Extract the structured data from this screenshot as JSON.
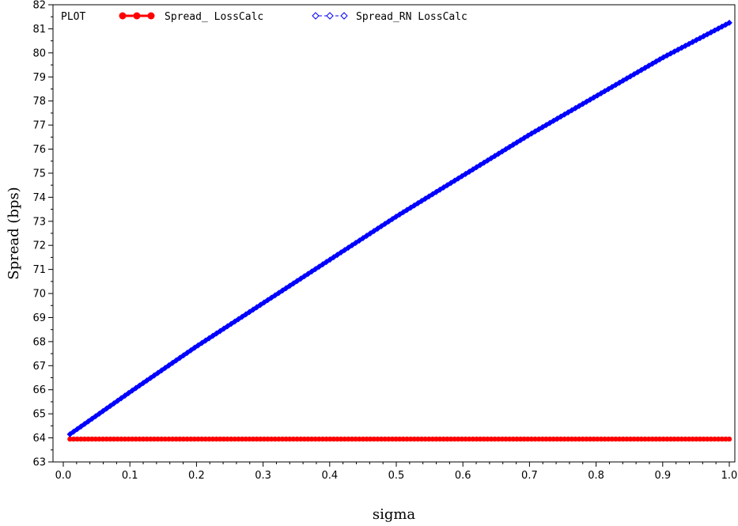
{
  "chart_data": {
    "type": "line",
    "legend_title": "PLOT",
    "xlabel": "sigma",
    "ylabel": "Spread (bps)",
    "xlim": [
      0,
      1.0
    ],
    "ylim": [
      63,
      82
    ],
    "x_ticks": [
      "0.0",
      "0.1",
      "0.2",
      "0.3",
      "0.4",
      "0.5",
      "0.6",
      "0.7",
      "0.8",
      "0.9",
      "1.0"
    ],
    "y_ticks": [
      "63",
      "64",
      "65",
      "66",
      "67",
      "68",
      "69",
      "70",
      "71",
      "72",
      "73",
      "74",
      "75",
      "76",
      "77",
      "78",
      "79",
      "80",
      "81",
      "82"
    ],
    "grid": false,
    "legend_position": "top",
    "series": [
      {
        "name": "Spread_ LossCalc",
        "color": "#ff0000",
        "marker": "filled-circle",
        "x": [
          0.01,
          0.1,
          0.2,
          0.3,
          0.4,
          0.5,
          0.6,
          0.7,
          0.8,
          0.9,
          1.0
        ],
        "y": [
          63.95,
          63.95,
          63.95,
          63.95,
          63.95,
          63.95,
          63.95,
          63.95,
          63.95,
          63.95,
          63.95
        ]
      },
      {
        "name": "Spread_RN LossCalc",
        "color": "#0000ff",
        "marker": "open-diamond",
        "x": [
          0.01,
          0.1,
          0.2,
          0.3,
          0.4,
          0.5,
          0.6,
          0.7,
          0.8,
          0.9,
          1.0
        ],
        "y": [
          64.15,
          65.9,
          67.8,
          69.6,
          71.4,
          73.2,
          74.9,
          76.6,
          78.2,
          79.8,
          81.25
        ]
      }
    ]
  }
}
